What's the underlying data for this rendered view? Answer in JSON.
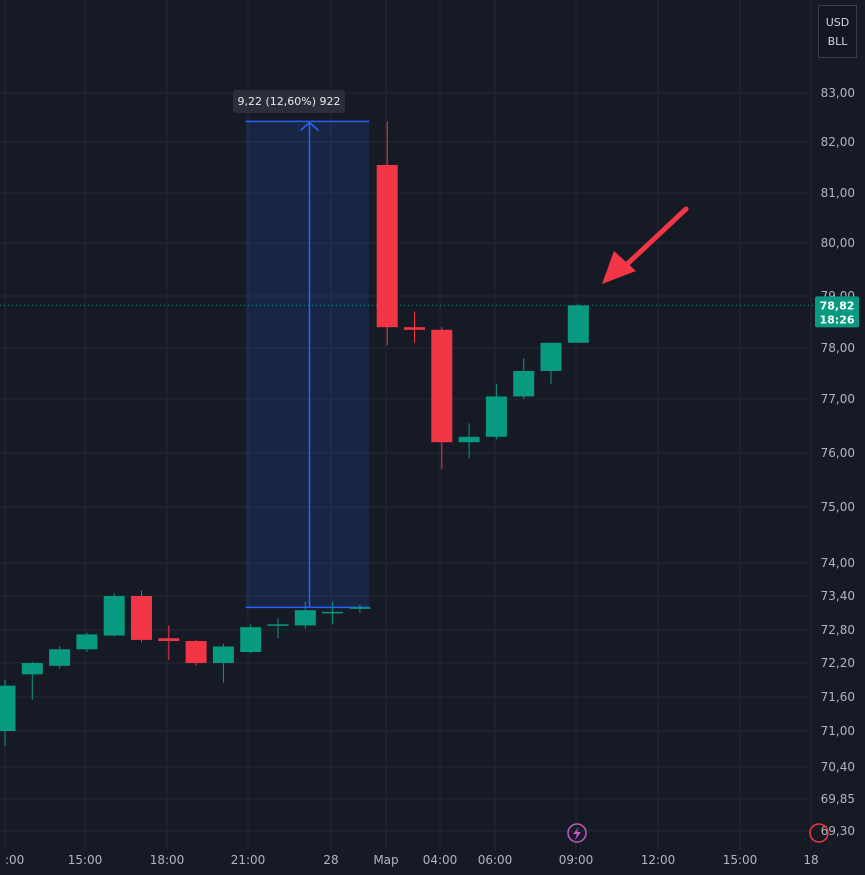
{
  "currency_box": {
    "line1": "USD",
    "line2": "BLL"
  },
  "colors": {
    "up": "#089981",
    "down": "#f23645",
    "bg": "#161a25",
    "grid": "#242834",
    "measure": "#2962ff",
    "arrow": "#f23645"
  },
  "last_price": {
    "value": "78,82",
    "countdown": "18:26"
  },
  "measure": {
    "label": "9,22 (12,60%) 922",
    "from": 73.2,
    "to": 82.42,
    "start_x": 9,
    "end_x": 14
  },
  "event_icon": "lightning-icon",
  "annotation_arrow": "arrow-pointing-to-last-candle",
  "chart_data": {
    "type": "candlestick",
    "y_tick_labels": [
      "83,00",
      "82,00",
      "81,00",
      "80,00",
      "79,00",
      "78,00",
      "77,00",
      "76,00",
      "75,00",
      "74,00",
      "73,40",
      "72,80",
      "72,20",
      "71,60",
      "71,00",
      "70,40",
      "69,85",
      "69,30"
    ],
    "x_tick_labels": [
      ":00",
      "15:00",
      "18:00",
      "21:00",
      "28",
      "Мар",
      "04:00",
      "06:00",
      "09:00",
      "12:00",
      "15:00",
      "18"
    ],
    "candles": [
      {
        "x": 0,
        "o": 71.0,
        "h": 71.9,
        "l": 70.75,
        "c": 71.8
      },
      {
        "x": 1,
        "o": 72.0,
        "h": 72.22,
        "l": 71.55,
        "c": 72.2
      },
      {
        "x": 2,
        "o": 72.15,
        "h": 72.5,
        "l": 72.1,
        "c": 72.45
      },
      {
        "x": 3,
        "o": 72.45,
        "h": 72.75,
        "l": 72.4,
        "c": 72.72
      },
      {
        "x": 4,
        "o": 72.7,
        "h": 73.45,
        "l": 72.68,
        "c": 73.4
      },
      {
        "x": 5,
        "o": 73.4,
        "h": 73.5,
        "l": 72.58,
        "c": 72.62
      },
      {
        "x": 6,
        "o": 72.65,
        "h": 72.88,
        "l": 72.25,
        "c": 72.6
      },
      {
        "x": 7,
        "o": 72.6,
        "h": 72.62,
        "l": 72.15,
        "c": 72.2
      },
      {
        "x": 8,
        "o": 72.2,
        "h": 72.55,
        "l": 71.85,
        "c": 72.5
      },
      {
        "x": 9,
        "o": 72.4,
        "h": 72.9,
        "l": 72.38,
        "c": 72.85
      },
      {
        "x": 10,
        "o": 72.88,
        "h": 73.0,
        "l": 72.65,
        "c": 72.9
      },
      {
        "x": 11,
        "o": 72.88,
        "h": 73.3,
        "l": 72.82,
        "c": 73.15
      },
      {
        "x": 12,
        "o": 73.1,
        "h": 73.3,
        "l": 72.9,
        "c": 73.12
      },
      {
        "x": 13,
        "o": 73.2,
        "h": 73.25,
        "l": 73.1,
        "c": 73.2
      },
      {
        "x": 14,
        "o": 81.55,
        "h": 82.42,
        "l": 78.05,
        "c": 78.4
      },
      {
        "x": 15,
        "o": 78.4,
        "h": 78.7,
        "l": 78.1,
        "c": 78.35
      },
      {
        "x": 16,
        "o": 78.35,
        "h": 78.4,
        "l": 75.7,
        "c": 76.2
      },
      {
        "x": 17,
        "o": 76.2,
        "h": 76.55,
        "l": 75.9,
        "c": 76.3
      },
      {
        "x": 18,
        "o": 76.3,
        "h": 77.3,
        "l": 76.25,
        "c": 77.05
      },
      {
        "x": 19,
        "o": 77.05,
        "h": 77.8,
        "l": 77.0,
        "c": 77.55
      },
      {
        "x": 20,
        "o": 77.55,
        "h": 78.1,
        "l": 77.3,
        "c": 78.1
      },
      {
        "x": 21,
        "o": 78.1,
        "h": 78.85,
        "l": 78.1,
        "c": 78.82
      }
    ]
  }
}
